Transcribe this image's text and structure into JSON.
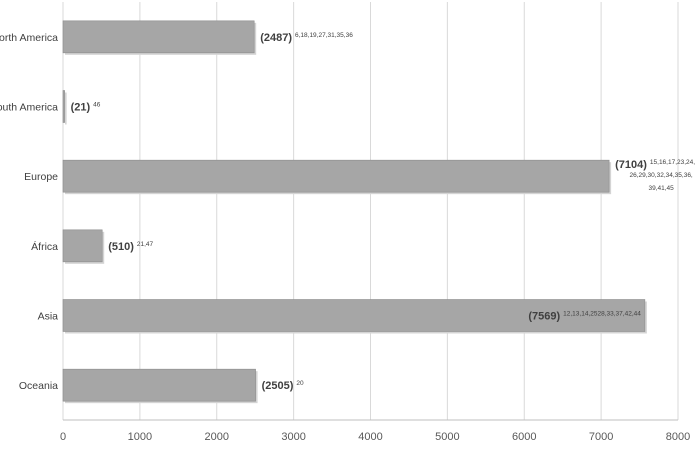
{
  "chart_data": {
    "type": "bar",
    "orientation": "horizontal",
    "categories": [
      "North America",
      "South America",
      "Europe",
      "África",
      "Asia",
      "Oceania"
    ],
    "values": [
      2487,
      21,
      7104,
      510,
      7569,
      2505
    ],
    "data_labels": [
      "(2487)",
      "(21)",
      "(7104)",
      "(510)",
      "(7569)",
      "(2505)"
    ],
    "reference_superscripts": [
      [
        "6,18,19,27,31,35,36"
      ],
      [
        "46"
      ],
      [
        "15,16,17,23,24,",
        "26,29,30,32,34,35,36,",
        "39,41,45"
      ],
      [
        "21,47"
      ],
      [
        "12,13,14,2528,33,37,42,44"
      ],
      [
        "20"
      ]
    ],
    "xlim": [
      0,
      8000
    ],
    "x_ticks": [
      "0",
      "1000",
      "2000",
      "3000",
      "4000",
      "5000",
      "6000",
      "7000",
      "8000"
    ],
    "gridlines": true,
    "legend": "none",
    "bar_color": "#a6a6a6",
    "grid_color": "#d9d9d9"
  }
}
